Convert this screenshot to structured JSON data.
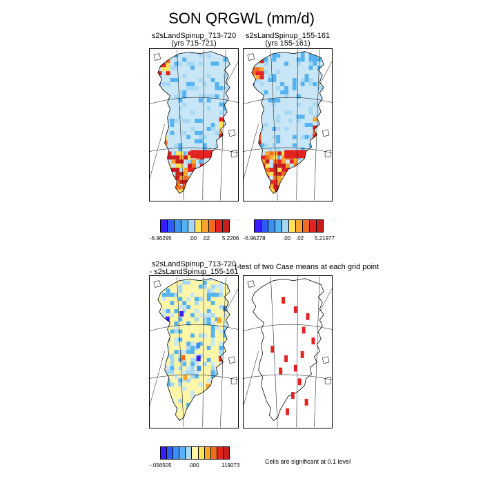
{
  "title": "SON QRGWL (mm/d)",
  "panels": [
    {
      "title_line1": "s2sLandSpinup_713-720",
      "title_line2": "(yrs 715-721)",
      "style": "sequential"
    },
    {
      "title_line1": "s2sLandSpinup_155-161",
      "title_line2": "(yrs 155-161)",
      "style": "sequential"
    },
    {
      "title_line1": "s2sLandSpinup_713-720",
      "title_line2": "- s2sLandSpinup_155-161",
      "style": "difference"
    },
    {
      "title_line1": "t-test of two Case means at each grid point",
      "title_line2": "",
      "style": "significance"
    }
  ],
  "colorbars": [
    {
      "colors": [
        "#3a1dff",
        "#2c5cf7",
        "#3c8ff0",
        "#55b3f2",
        "#a6d8f4",
        "#ffe25a",
        "#fba42b",
        "#f06a1f",
        "#e2231f",
        "#c61d1f"
      ],
      "labels": [
        "-6.96295",
        ".00",
        ".02",
        "5.2206"
      ]
    },
    {
      "colors": [
        "#3a1dff",
        "#2c5cf7",
        "#3c8ff0",
        "#55b3f2",
        "#a6d8f4",
        "#ffe25a",
        "#fba42b",
        "#f06a1f",
        "#e2231f",
        "#c61d1f"
      ],
      "labels": [
        "-6.96278",
        ".00",
        ".02",
        "5.21977"
      ]
    },
    {
      "colors": [
        "#3a1dff",
        "#2c5cf7",
        "#3c8ff0",
        "#55b3f2",
        "#a6d8f4",
        "#fdf6a8",
        "#ffe25a",
        "#fba42b",
        "#f06a1f",
        "#e2231f",
        "#c61d1f"
      ],
      "labels": [
        "-.056505",
        ".000",
        ".119073"
      ]
    }
  ],
  "significance_note": "Cells are significant at 0.1 level"
}
